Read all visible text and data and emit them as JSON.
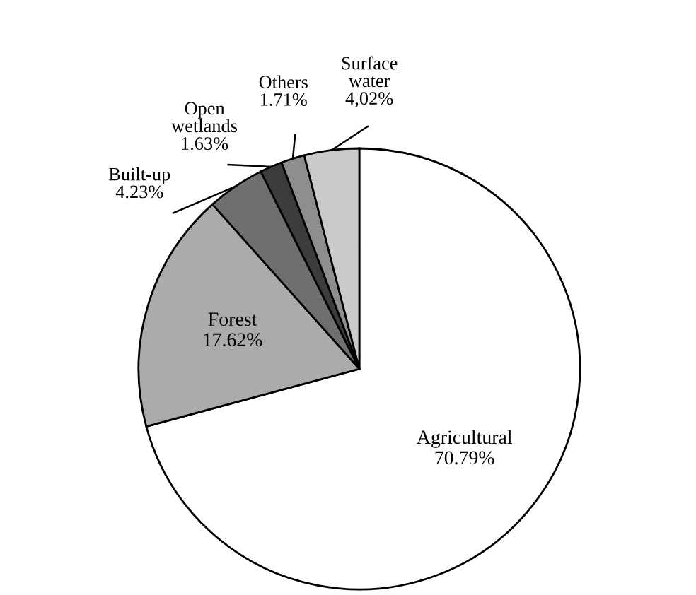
{
  "chart_data": {
    "type": "pie",
    "categories": [
      "Agricultural",
      "Forest",
      "Built-up",
      "Open wetlands",
      "Others",
      "Surface water"
    ],
    "values": [
      70.79,
      17.62,
      4.23,
      1.63,
      1.71,
      4.02
    ],
    "colors": [
      "#ffffff",
      "#ababab",
      "#6f6f6f",
      "#3c3c3c",
      "#8e8e8e",
      "#cacaca"
    ],
    "value_labels": [
      "70.79%",
      "17.62%",
      "4.23%",
      "1.63%",
      "1.71%",
      "4,02%"
    ],
    "legend": false
  }
}
